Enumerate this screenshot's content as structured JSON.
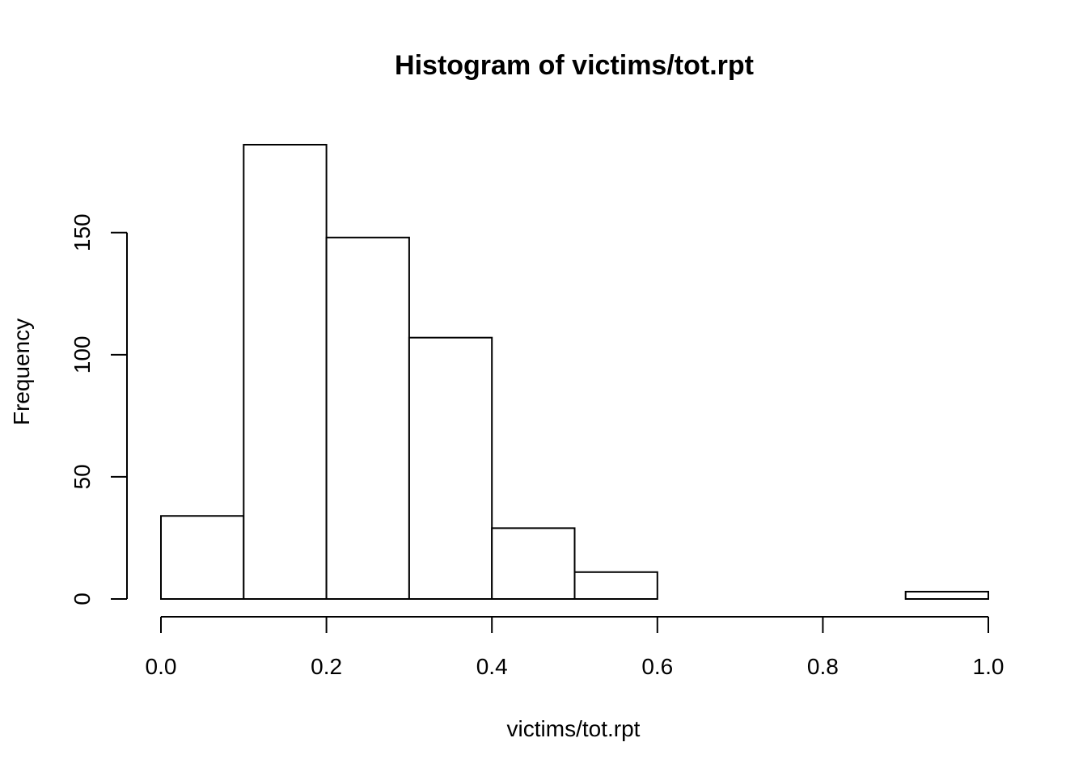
{
  "chart_data": {
    "type": "bar",
    "title": "Histogram of victims/tot.rpt",
    "xlabel": "victims/tot.rpt",
    "ylabel": "Frequency",
    "bins": [
      {
        "from": 0.0,
        "to": 0.1,
        "count": 34
      },
      {
        "from": 0.1,
        "to": 0.2,
        "count": 186
      },
      {
        "from": 0.2,
        "to": 0.3,
        "count": 148
      },
      {
        "from": 0.3,
        "to": 0.4,
        "count": 107
      },
      {
        "from": 0.4,
        "to": 0.5,
        "count": 29
      },
      {
        "from": 0.5,
        "to": 0.6,
        "count": 11
      },
      {
        "from": 0.6,
        "to": 0.7,
        "count": 0
      },
      {
        "from": 0.7,
        "to": 0.8,
        "count": 0
      },
      {
        "from": 0.8,
        "to": 0.9,
        "count": 0
      },
      {
        "from": 0.9,
        "to": 1.0,
        "count": 3
      }
    ],
    "xlim": [
      0,
      1
    ],
    "ylim": [
      0,
      186
    ],
    "x_ticks": [
      0.0,
      0.2,
      0.4,
      0.6,
      0.8,
      1.0
    ],
    "x_tick_labels": [
      "0.0",
      "0.2",
      "0.4",
      "0.6",
      "0.8",
      "1.0"
    ],
    "y_ticks": [
      0,
      50,
      100,
      150
    ],
    "y_tick_labels": [
      "0",
      "50",
      "100",
      "150"
    ],
    "grid": false,
    "legend": "none"
  }
}
